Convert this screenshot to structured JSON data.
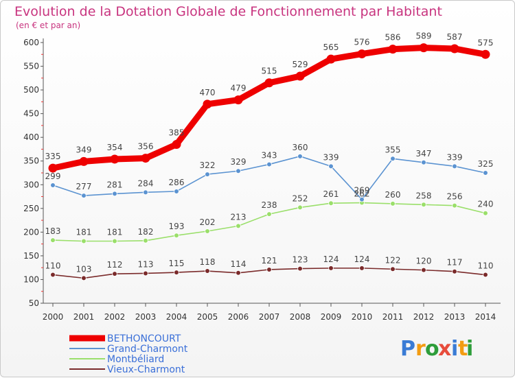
{
  "chart_data": {
    "type": "line",
    "title": "Evolution de la Dotation Globale de Fonctionnement par Habitant",
    "subtitle": "(en € et par an)",
    "xlabel": "",
    "ylabel": "",
    "ylim": [
      50,
      600
    ],
    "yticks": [
      50,
      100,
      150,
      200,
      250,
      300,
      350,
      400,
      450,
      500,
      550,
      600
    ],
    "categories": [
      "2000",
      "2001",
      "2002",
      "2003",
      "2004",
      "2005",
      "2006",
      "2007",
      "2008",
      "2009",
      "2010",
      "2011",
      "2012",
      "2013",
      "2014"
    ],
    "grid": false,
    "legend_position": "bottom-left",
    "series": [
      {
        "name": "BETHONCOURT",
        "color": "#ee0000",
        "label_color": "#3a6fd8",
        "values": [
          335,
          349,
          354,
          356,
          385,
          470,
          479,
          515,
          529,
          565,
          576,
          586,
          589,
          587,
          575
        ]
      },
      {
        "name": "Grand-Charmont",
        "color": "#5b93d1",
        "label_color": "#3a6fd8",
        "values": [
          299,
          277,
          281,
          284,
          286,
          322,
          329,
          343,
          360,
          339,
          269,
          355,
          347,
          339,
          325
        ]
      },
      {
        "name": "Montbéliard",
        "color": "#9adf6a",
        "label_color": "#3a6fd8",
        "values": [
          183,
          181,
          181,
          182,
          193,
          202,
          213,
          238,
          252,
          261,
          262,
          260,
          258,
          256,
          240
        ]
      },
      {
        "name": "Vieux-Charmont",
        "color": "#7a2a2a",
        "label_color": "#3a6fd8",
        "values": [
          110,
          103,
          112,
          113,
          115,
          118,
          114,
          121,
          123,
          124,
          124,
          122,
          120,
          117,
          110
        ]
      }
    ]
  },
  "logo": {
    "letters": [
      "P",
      "r",
      "o",
      "x",
      "i",
      "t",
      "i"
    ],
    "colors": [
      "#3a7bd5",
      "#f39c12",
      "#2e9d3a",
      "#e74c3c",
      "#3a7bd5",
      "#f39c12",
      "#2e9d3a"
    ]
  }
}
